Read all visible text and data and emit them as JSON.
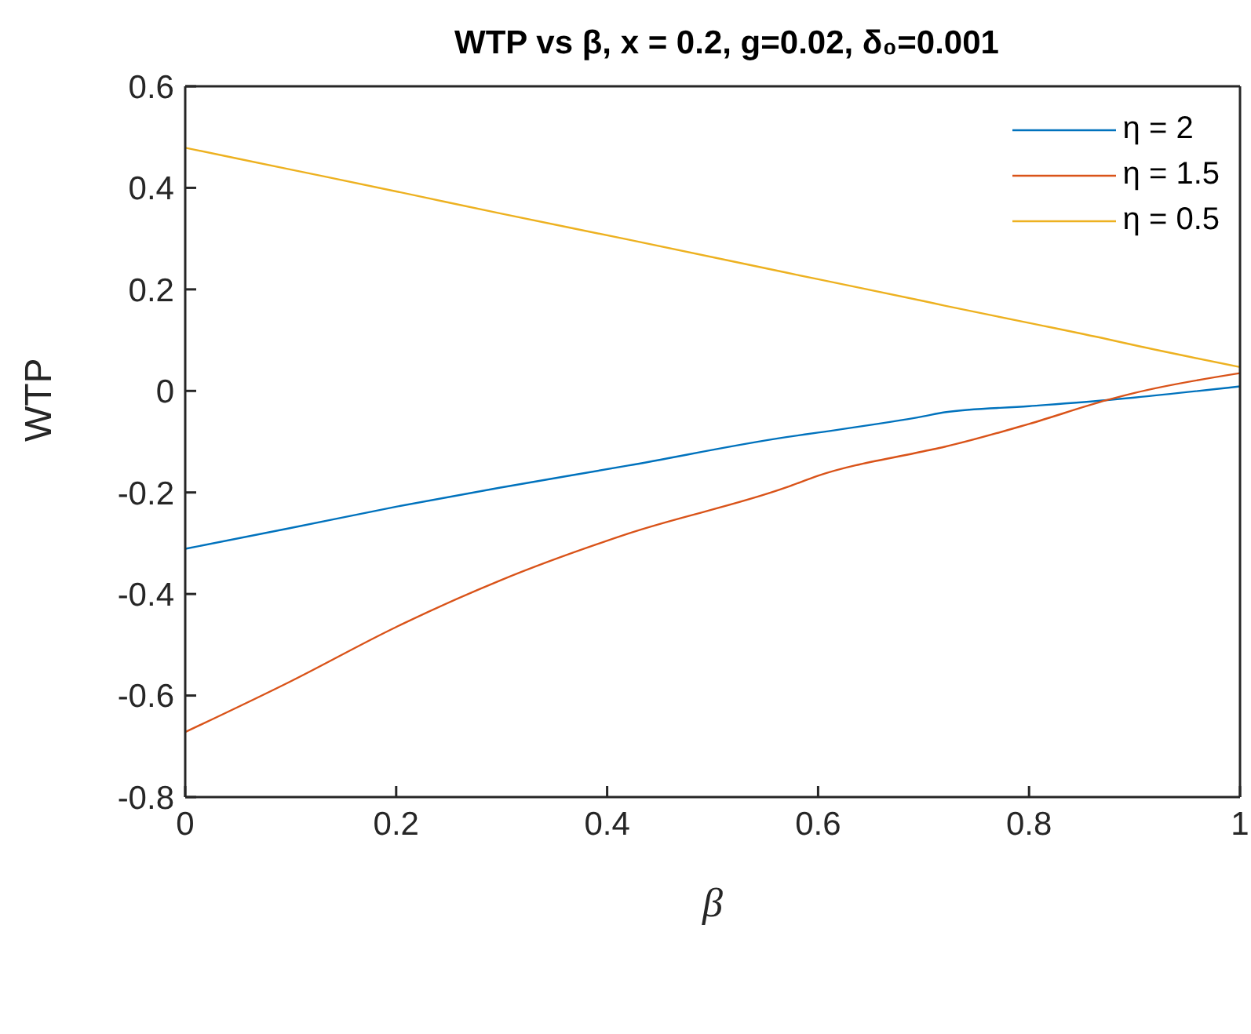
{
  "chart_data": {
    "type": "line",
    "title": "WTP vs β, x = 0.2, g=0.02, δ₀=0.001",
    "xlabel": "β",
    "ylabel": "WTP",
    "x": [
      0,
      0.1,
      0.2,
      0.3,
      0.42,
      0.57,
      0.6,
      0.7,
      0.72,
      0.8,
      0.874,
      0.9,
      1
    ],
    "series": [
      {
        "name": "η = 2",
        "color": "#0072bd",
        "values": [
          -0.311,
          -0.27,
          -0.228,
          -0.19,
          -0.147,
          -0.091,
          -0.082,
          -0.05,
          -0.042,
          -0.03,
          -0.018,
          -0.013,
          0.009
        ]
      },
      {
        "name": "η = 1.5",
        "color": "#d95319",
        "values": [
          -0.672,
          -0.572,
          -0.465,
          -0.372,
          -0.281,
          -0.19,
          -0.167,
          -0.119,
          -0.11,
          -0.065,
          -0.018,
          -0.004,
          0.035
        ]
      },
      {
        "name": "η = 0.5",
        "color": "#edb120",
        "values": [
          0.479,
          0.436,
          0.393,
          0.349,
          0.298,
          0.233,
          0.22,
          0.177,
          0.168,
          0.134,
          0.102,
          0.09,
          0.047
        ]
      }
    ],
    "xlim": [
      0,
      1
    ],
    "xticks": [
      0,
      0.2,
      0.4,
      0.6,
      0.8,
      {
        "value": 1,
        "label": "1"
      }
    ],
    "ylim": [
      -0.8,
      0.6
    ],
    "yticks": [
      -0.8,
      -0.6,
      -0.4,
      -0.2,
      {
        "value": 0,
        "label": "0"
      },
      0.2,
      0.4,
      0.6
    ],
    "grid": false,
    "legend": "top right",
    "marker": "none",
    "line_style": "solid"
  }
}
